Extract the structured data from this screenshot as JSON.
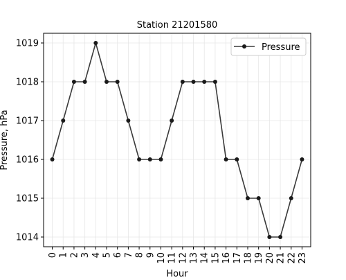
{
  "chart_data": {
    "type": "line",
    "title": "Station 21201580",
    "xlabel": "Hour",
    "ylabel": "Pressure, hPa",
    "x": [
      0,
      1,
      2,
      3,
      4,
      5,
      6,
      7,
      8,
      9,
      10,
      11,
      12,
      13,
      14,
      15,
      16,
      17,
      18,
      19,
      20,
      21,
      22,
      23
    ],
    "x_tick_labels": [
      "0",
      "1",
      "2",
      "3",
      "4",
      "5",
      "6",
      "7",
      "8",
      "9",
      "10",
      "11",
      "12",
      "13",
      "14",
      "15",
      "16",
      "17",
      "18",
      "19",
      "20",
      "21",
      "22",
      "23"
    ],
    "y_ticks": [
      1014,
      1015,
      1016,
      1017,
      1018,
      1019
    ],
    "y_tick_labels": [
      "1014",
      "1015",
      "1016",
      "1017",
      "1018",
      "1019"
    ],
    "ylim": [
      1013.75,
      1019.25
    ],
    "xlim": [
      -0.8,
      23.8
    ],
    "grid": true,
    "legend_position": "top-right",
    "series": [
      {
        "name": "Pressure",
        "color": "#3a3a3a",
        "marker": "circle",
        "values": [
          1016,
          1017,
          1018,
          1018,
          1019,
          1018,
          1018,
          1017,
          1016,
          1016,
          1016,
          1017,
          1018,
          1018,
          1018,
          1018,
          1016,
          1016,
          1015,
          1015,
          1014,
          1014,
          1015,
          1016
        ]
      }
    ]
  }
}
